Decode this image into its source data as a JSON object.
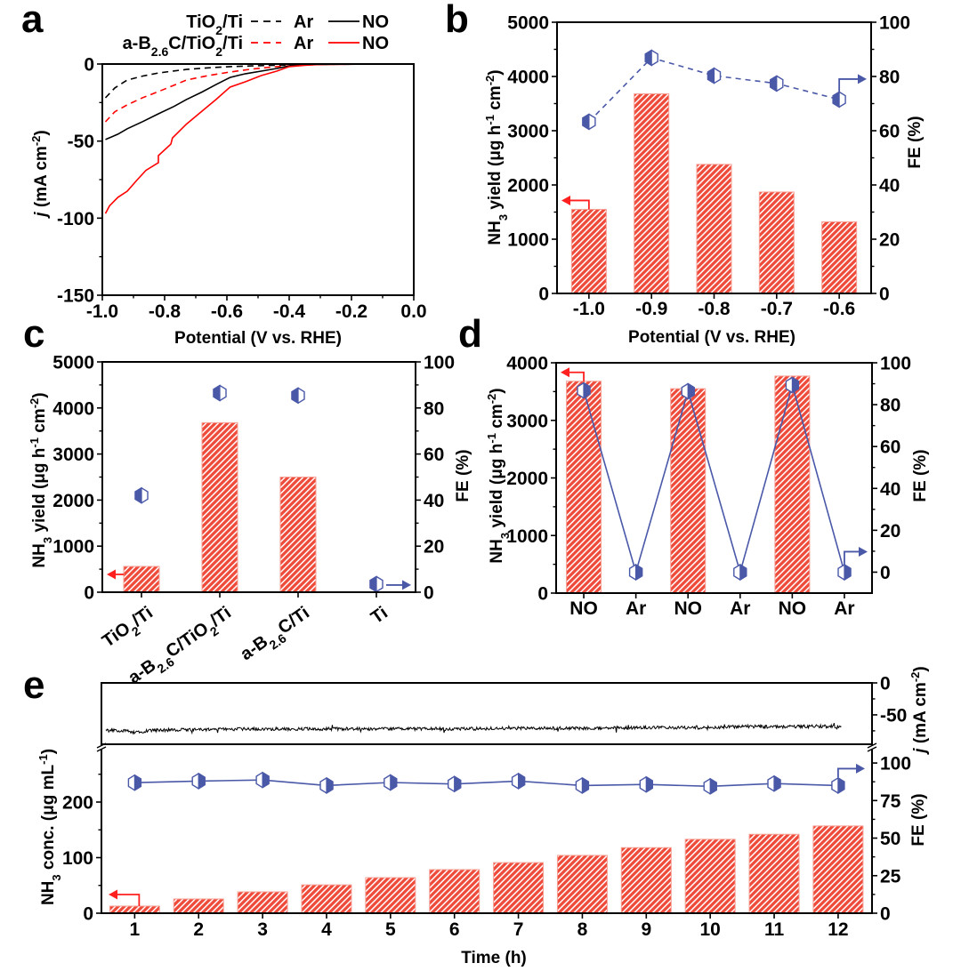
{
  "figure": {
    "panel_labels": [
      "a",
      "b",
      "c",
      "d",
      "e"
    ]
  },
  "chart_data": [
    {
      "panel": "a",
      "type": "line",
      "title": "",
      "xlabel": [
        {
          "t": "Potential (V vs. RHE)"
        }
      ],
      "ylabel": [
        {
          "t": "j",
          "it": true
        },
        {
          "t": " (mA cm"
        },
        {
          "t": "-2",
          "sup": true
        },
        {
          "t": ")"
        }
      ],
      "xlim": [
        -1.0,
        0.0
      ],
      "ylim": [
        -150,
        0
      ],
      "xticks": {
        "values": [
          -1.0,
          -0.8,
          -0.6,
          -0.4,
          -0.2,
          0.0
        ],
        "labels": [
          "-1.0",
          "-0.8",
          "-0.6",
          "-0.4",
          "-0.2",
          "0.0"
        ]
      },
      "yticks": {
        "values": [
          0,
          -50,
          -100,
          -150
        ],
        "labels": [
          "0",
          "-50",
          "-100",
          "-150"
        ]
      },
      "grid": false,
      "legend": {
        "placement": "top-right",
        "rows": [
          {
            "sample": [
              {
                "t": "TiO"
              },
              {
                "t": "2",
                "sub": true
              },
              {
                "t": "/Ti"
              }
            ],
            "color": "#000000",
            "entries": [
              {
                "label": "Ar",
                "line": "dashed"
              },
              {
                "label": "NO",
                "line": "solid"
              }
            ]
          },
          {
            "sample": [
              {
                "t": "a-B"
              },
              {
                "t": "2.6",
                "sub": true
              },
              {
                "t": "C/TiO"
              },
              {
                "t": "2",
                "sub": true
              },
              {
                "t": "/Ti"
              }
            ],
            "color": "#ff0000",
            "entries": [
              {
                "label": "Ar",
                "line": "dashed"
              },
              {
                "label": "NO",
                "line": "solid"
              }
            ]
          }
        ]
      },
      "series": [
        {
          "name": "TiO2/Ti - Ar",
          "color": "#000000",
          "line": "dashed",
          "x": [
            -0.99,
            -0.96,
            -0.92,
            -0.87,
            -0.82,
            -0.77,
            -0.73,
            -0.66,
            -0.59,
            -0.52,
            -0.44,
            -0.35,
            -0.25,
            -0.1,
            0.0
          ],
          "y": [
            -21.9,
            -15.5,
            -10.4,
            -7.8,
            -5.8,
            -4.5,
            -3.5,
            -2.5,
            -1.7,
            -1.2,
            -0.8,
            -0.4,
            -0.2,
            -0.1,
            0.0
          ]
        },
        {
          "name": "a-B2.6C/TiO2/Ti - Ar",
          "color": "#ff0000",
          "line": "dashed",
          "x": [
            -0.99,
            -0.96,
            -0.92,
            -0.87,
            -0.82,
            -0.77,
            -0.73,
            -0.66,
            -0.59,
            -0.52,
            -0.44,
            -0.35,
            -0.25,
            -0.1,
            0.0
          ],
          "y": [
            -37.5,
            -31.0,
            -26.5,
            -21.8,
            -17.9,
            -13.8,
            -10.4,
            -7.5,
            -5.2,
            -3.3,
            -1.7,
            -0.6,
            -0.2,
            -0.1,
            0.0
          ]
        },
        {
          "name": "TiO2/Ti - NO",
          "color": "#000000",
          "line": "solid",
          "x": [
            -0.99,
            -0.95,
            -0.92,
            -0.87,
            -0.82,
            -0.77,
            -0.73,
            -0.68,
            -0.635,
            -0.59,
            -0.56,
            -0.54,
            -0.49,
            -0.44,
            -0.4,
            -0.35,
            -0.3,
            -0.2,
            0.0
          ],
          "y": [
            -49.0,
            -45.5,
            -42.0,
            -37.3,
            -32.3,
            -27.5,
            -23.0,
            -18.2,
            -13.3,
            -8.7,
            -7.2,
            -6.3,
            -4.6,
            -2.9,
            -1.2,
            -0.5,
            -0.2,
            -0.1,
            0.0
          ]
        },
        {
          "name": "a-B2.6C/TiO2/Ti - NO",
          "color": "#ff0000",
          "line": "solid",
          "x": [
            -0.99,
            -0.977,
            -0.95,
            -0.92,
            -0.89,
            -0.86,
            -0.82,
            -0.82,
            -0.78,
            -0.775,
            -0.73,
            -0.68,
            -0.635,
            -0.59,
            -0.54,
            -0.49,
            -0.44,
            -0.4,
            -0.35,
            -0.3,
            -0.2,
            0.0
          ],
          "y": [
            -97.0,
            -92.0,
            -86.5,
            -82.5,
            -75.6,
            -69.0,
            -64.0,
            -59.4,
            -52.0,
            -48.0,
            -39.0,
            -30.6,
            -23.0,
            -15.0,
            -11.5,
            -7.5,
            -4.6,
            -1.7,
            -0.8,
            -0.3,
            -0.1,
            0.0
          ]
        }
      ]
    },
    {
      "panel": "b",
      "type": "bar",
      "title": "",
      "xlabel": [
        {
          "t": "Potential (V vs. RHE)"
        }
      ],
      "ylabel": [
        {
          "t": "NH"
        },
        {
          "t": "3",
          "sub": true
        },
        {
          "t": " yield (μg h"
        },
        {
          "t": "-1",
          "sup": true
        },
        {
          "t": " cm"
        },
        {
          "t": "-2",
          "sup": true
        },
        {
          "t": ")"
        }
      ],
      "ylabel_right": [
        {
          "t": "FE (%)"
        }
      ],
      "categories": [
        "-1.0",
        "-0.9",
        "-0.8",
        "-0.7",
        "-0.6"
      ],
      "ylim": [
        0,
        5000
      ],
      "yticks": {
        "values": [
          0,
          1000,
          2000,
          3000,
          4000,
          5000
        ],
        "labels": [
          "0",
          "1000",
          "2000",
          "3000",
          "4000",
          "5000"
        ]
      },
      "ylim_right": [
        0,
        100
      ],
      "yticks_right": {
        "values": [
          0,
          20,
          40,
          60,
          80,
          100
        ],
        "labels": [
          "0",
          "20",
          "40",
          "60",
          "80",
          "100"
        ]
      },
      "grid": false,
      "series": [
        {
          "name": "NH3 yield",
          "kind": "bar",
          "axis": "left",
          "color": "#ee4b3b",
          "hatch": "#ffffff",
          "values": [
            1550,
            3680,
            2380,
            1870,
            1320
          ]
        },
        {
          "name": "FE",
          "kind": "line",
          "axis": "right",
          "line": "dashed",
          "marker": "half-filled-hexagon",
          "marker_fill_side": "left",
          "color": "#4a58a8",
          "values": [
            63.3,
            86.9,
            80.3,
            77.4,
            71.5
          ]
        }
      ],
      "axis_arrows": [
        {
          "series": 0,
          "points_to": "left-axis",
          "anchor_index": 0,
          "color": "#ff1f1f"
        },
        {
          "series": 1,
          "points_to": "right-axis",
          "anchor_index": 4,
          "color": "#4a58a8"
        }
      ]
    },
    {
      "panel": "c",
      "type": "bar",
      "title": "",
      "ylabel": [
        {
          "t": "NH"
        },
        {
          "t": "3",
          "sub": true
        },
        {
          "t": " yield (μg h"
        },
        {
          "t": "-1",
          "sup": true
        },
        {
          "t": " cm"
        },
        {
          "t": "-2",
          "sup": true
        },
        {
          "t": ")"
        }
      ],
      "ylabel_right": [
        {
          "t": "FE (%)"
        }
      ],
      "categories": [
        [
          {
            "t": "TiO"
          },
          {
            "t": "2",
            "sub": true
          },
          {
            "t": "/Ti"
          }
        ],
        [
          {
            "t": "a-B"
          },
          {
            "t": "2.6",
            "sub": true
          },
          {
            "t": "C/TiO"
          },
          {
            "t": "2",
            "sub": true
          },
          {
            "t": "/Ti"
          }
        ],
        [
          {
            "t": "a-B"
          },
          {
            "t": "2.6",
            "sub": true
          },
          {
            "t": "C/Ti"
          }
        ],
        [
          {
            "t": "Ti"
          }
        ]
      ],
      "ylim": [
        0,
        5000
      ],
      "yticks": {
        "values": [
          0,
          1000,
          2000,
          3000,
          4000,
          5000
        ],
        "labels": [
          "0",
          "1000",
          "2000",
          "3000",
          "4000",
          "5000"
        ]
      },
      "ylim_right": [
        0,
        100
      ],
      "yticks_right": {
        "values": [
          0,
          20,
          40,
          60,
          80,
          100
        ],
        "labels": [
          "0",
          "20",
          "40",
          "60",
          "80",
          "100"
        ]
      },
      "grid": false,
      "series": [
        {
          "name": "NH3 yield",
          "kind": "bar",
          "axis": "left",
          "color": "#ee4b3b",
          "hatch": "#ffffff",
          "values": [
            560,
            3680,
            2500,
            0
          ]
        },
        {
          "name": "FE",
          "kind": "scatter",
          "axis": "right",
          "line": "none",
          "marker": "half-filled-hexagon",
          "marker_fill_side": "left",
          "color": "#4a58a8",
          "values": [
            42.0,
            86.5,
            85.4,
            3.5
          ]
        }
      ],
      "axis_arrows": [
        {
          "series": 0,
          "points_to": "left-axis",
          "anchor_index": 0,
          "color": "#ff1f1f"
        },
        {
          "series": 1,
          "points_to": "right-axis",
          "anchor_index": 3,
          "color": "#4a58a8"
        }
      ]
    },
    {
      "panel": "d",
      "type": "bar",
      "title": "",
      "ylabel": [
        {
          "t": "NH"
        },
        {
          "t": "3",
          "sub": true
        },
        {
          "t": " yield (μg h"
        },
        {
          "t": "-1",
          "sup": true
        },
        {
          "t": " cm"
        },
        {
          "t": "-2",
          "sup": true
        },
        {
          "t": ")"
        }
      ],
      "ylabel_right": [
        {
          "t": "FE (%)"
        }
      ],
      "categories": [
        "NO",
        "Ar",
        "NO",
        "Ar",
        "NO",
        "Ar"
      ],
      "ylim": [
        0,
        4000
      ],
      "yticks": {
        "values": [
          0,
          1000,
          2000,
          3000,
          4000
        ],
        "labels": [
          "0",
          "1000",
          "2000",
          "3000",
          "4000"
        ]
      },
      "ylim_right": [
        -10,
        100
      ],
      "yticks_right": {
        "values": [
          0,
          20,
          40,
          60,
          80,
          100
        ],
        "labels": [
          "0",
          "20",
          "40",
          "60",
          "80",
          "100"
        ]
      },
      "grid": false,
      "series": [
        {
          "name": "NH3 yield",
          "kind": "bar",
          "axis": "left",
          "color": "#ee4b3b",
          "hatch": "#ffffff",
          "values": [
            3680,
            0,
            3550,
            0,
            3770,
            0
          ]
        },
        {
          "name": "FE",
          "kind": "line",
          "axis": "right",
          "line": "solid",
          "marker": "half-filled-hexagon",
          "marker_fill_side": "right",
          "color": "#4a58a8",
          "values": [
            86.8,
            0.0,
            86.4,
            0.0,
            89.4,
            0.0
          ]
        }
      ],
      "axis_arrows": [
        {
          "series": 0,
          "points_to": "left-axis",
          "anchor_index": 0,
          "color": "#ff1f1f"
        },
        {
          "series": 1,
          "points_to": "right-axis",
          "anchor_index": 5,
          "color": "#4a58a8"
        }
      ]
    },
    {
      "panel": "e",
      "type": "bar",
      "title": "",
      "xlabel": [
        {
          "t": "Time (h)"
        }
      ],
      "ylabel": [
        {
          "t": "NH"
        },
        {
          "t": "3",
          "sub": true
        },
        {
          "t": " conc. (μg mL"
        },
        {
          "t": "-1",
          "sup": true
        },
        {
          "t": ")"
        }
      ],
      "ylabel_right": [
        {
          "t": "FE (%)"
        }
      ],
      "x": [
        1,
        2,
        3,
        4,
        5,
        6,
        7,
        8,
        9,
        10,
        11,
        12
      ],
      "xlim": [
        0.48,
        12.53
      ],
      "xticks": {
        "values": [
          1,
          2,
          3,
          4,
          5,
          6,
          7,
          8,
          9,
          10,
          11,
          12
        ],
        "labels": [
          "1",
          "2",
          "3",
          "4",
          "5",
          "6",
          "7",
          "8",
          "9",
          "10",
          "11",
          "12"
        ]
      },
      "ylim": [
        0,
        300
      ],
      "yticks": {
        "values": [
          0,
          100,
          200
        ],
        "labels": [
          "0",
          "100",
          "200"
        ]
      },
      "ylim_right": [
        0,
        111
      ],
      "yticks_right": {
        "values": [
          0,
          25,
          50,
          75,
          100
        ],
        "labels": [
          "0",
          "25",
          "50",
          "75",
          "100"
        ]
      },
      "axis_break": true,
      "grid": false,
      "series": [
        {
          "name": "NH3 conc.",
          "kind": "bar",
          "axis": "left",
          "color": "#ee4b3b",
          "hatch": "#ffffff",
          "values": [
            12.8,
            25.6,
            38.4,
            51.0,
            64.0,
            78.4,
            91.0,
            104.0,
            118.0,
            133.0,
            142.0,
            157.0
          ]
        },
        {
          "name": "FE",
          "kind": "line",
          "axis": "right",
          "line": "solid",
          "marker": "half-filled-hexagon",
          "marker_fill_side": "right",
          "color": "#4a58a8",
          "values": [
            86.9,
            88.0,
            88.7,
            85.0,
            87.0,
            86.0,
            88.0,
            85.0,
            85.7,
            84.5,
            86.3,
            85.0
          ]
        }
      ],
      "axis_arrows": [
        {
          "series": 0,
          "points_to": "left-axis",
          "anchor_index": 0,
          "color": "#ff1f1f"
        },
        {
          "series": 1,
          "points_to": "right-axis",
          "anchor_index": 11,
          "color": "#4a58a8"
        }
      ],
      "current_trace": {
        "type": "line",
        "ylabel": [
          {
            "t": "j",
            "it": true
          },
          {
            "t": " (mA cm"
          },
          {
            "t": "-2",
            "sup": true
          },
          {
            "t": ")"
          }
        ],
        "ylim": [
          -96,
          0
        ],
        "yticks": {
          "values": [
            0,
            -50
          ],
          "labels": [
            "0",
            "-50"
          ]
        },
        "color": "#000000",
        "noise_amplitude": 2.5,
        "t": [
          0.55,
          0.9,
          1.0,
          1.3,
          2.0,
          3.0,
          4.0,
          5.0,
          6.0,
          7.0,
          8.0,
          9.0,
          10.0,
          10.5,
          11.0,
          11.5,
          12.05
        ],
        "j": [
          -74,
          -75,
          -78,
          -74,
          -73,
          -72,
          -72,
          -72,
          -72,
          -71,
          -71,
          -70,
          -70,
          -68,
          -69,
          -68,
          -68
        ]
      }
    }
  ]
}
